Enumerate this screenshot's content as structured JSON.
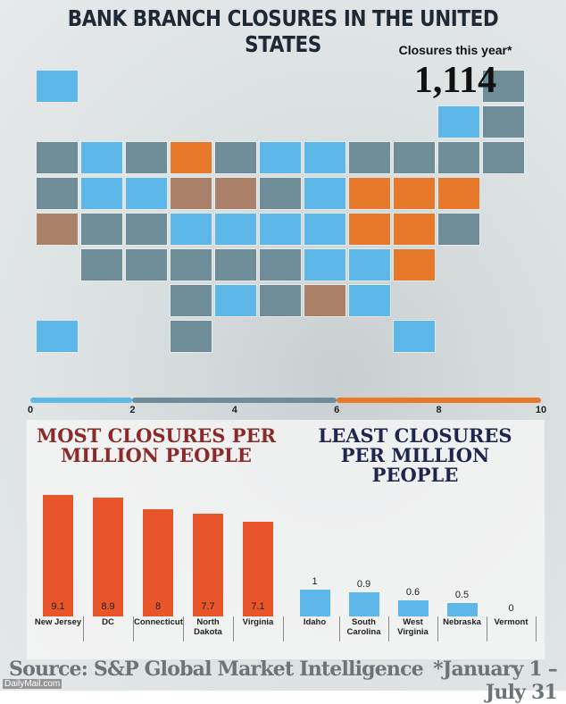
{
  "title": "BANK BRANCH CLOSURES IN THE UNITED STATES",
  "headline": {
    "label": "Closures this year*",
    "value": "1,114"
  },
  "chart_data": [
    {
      "type": "colorbar",
      "xlim": [
        0,
        10
      ],
      "xticks": [
        0,
        2,
        4,
        6,
        8,
        10
      ],
      "bins": [
        0,
        2,
        6,
        10
      ],
      "colors": [
        "#5db7e8",
        "#6f8d98",
        "#e8782a"
      ]
    },
    {
      "type": "bar",
      "title": "MOST CLOSURES PER MILLION PEOPLE",
      "categories": [
        "New Jersey",
        "DC",
        "Connecticut",
        "North Dakota",
        "Virginia"
      ],
      "values": [
        9.1,
        8.9,
        8,
        7.7,
        7.1
      ],
      "color": "#e8552a",
      "title_color": "#8b2a2a",
      "ylim": [
        0,
        10
      ]
    },
    {
      "type": "bar",
      "title": "LEAST CLOSURES PER MILLION PEOPLE",
      "categories": [
        "Idaho",
        "South Carolina",
        "West Virginia",
        "Nebraska",
        "Vermont"
      ],
      "values": [
        1,
        0.9,
        0.6,
        0.5,
        0
      ],
      "color": "#5db7e8",
      "title_color": "#1e2650",
      "ylim": [
        0,
        5
      ]
    }
  ],
  "source": "Source: S&P Global Market Intelligence",
  "footnote": "*January 1 – July 31",
  "credit": "DailyMail.com"
}
